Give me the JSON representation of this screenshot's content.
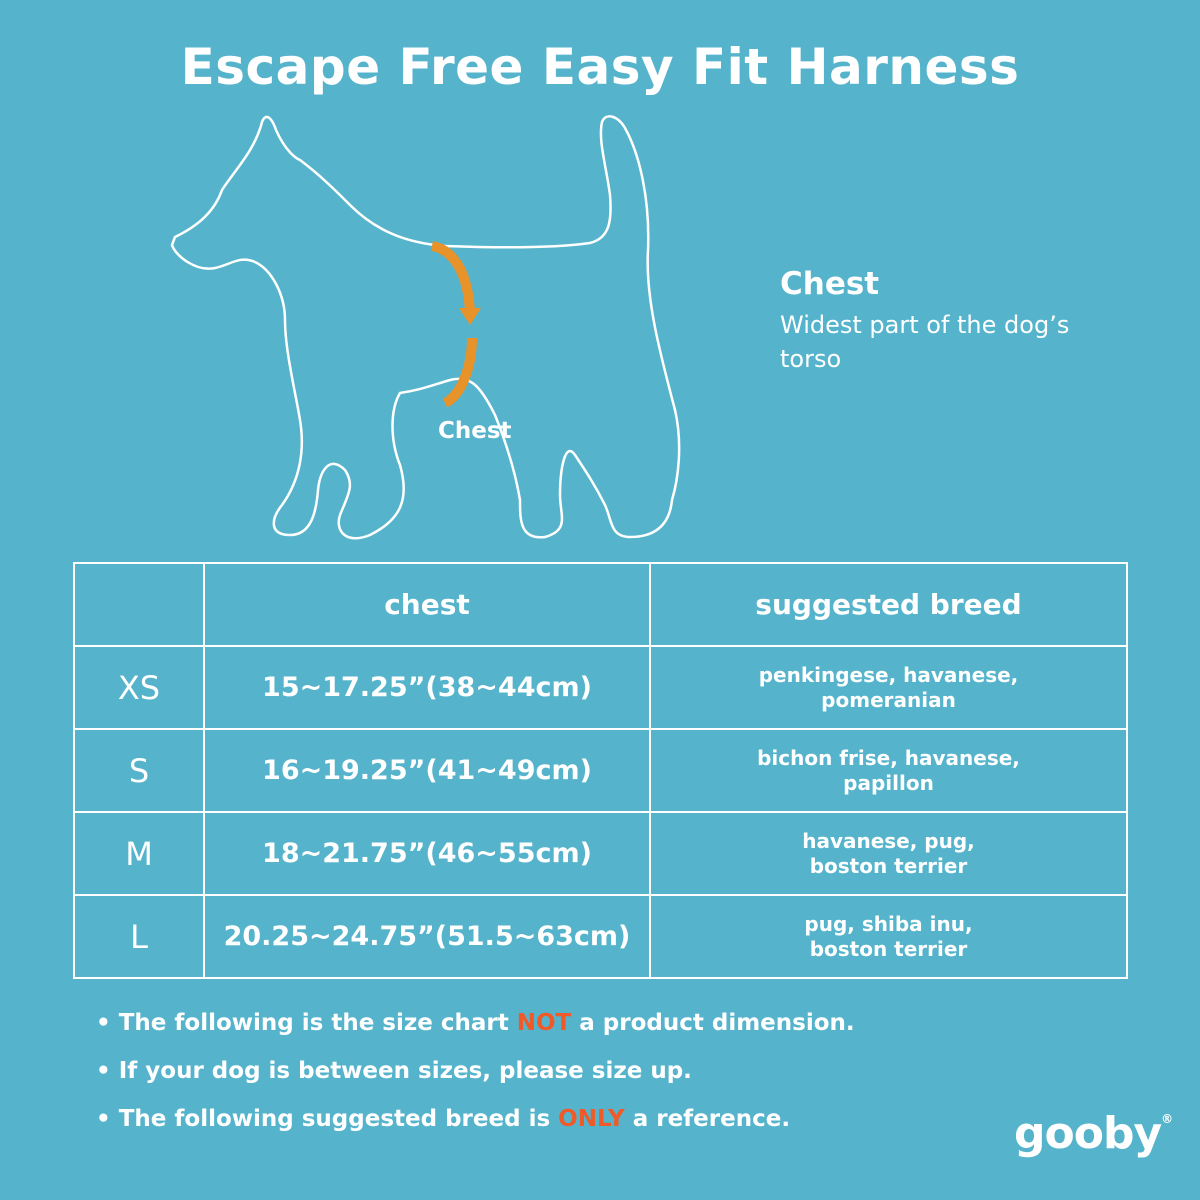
{
  "title": "Escape Free Easy Fit Harness",
  "diagram": {
    "chest_label": "Chest",
    "side_title": "Chest",
    "side_description": "Widest part of the dog’s torso",
    "outline_color": "#ffffff",
    "arrow_color": "#e8922a"
  },
  "table": {
    "headers": [
      "",
      "chest",
      "suggested breed"
    ],
    "rows": [
      {
        "size": "XS",
        "chest": "15~17.25”(38~44cm)",
        "breed_line1": "penkingese, havanese,",
        "breed_line2": "pomeranian"
      },
      {
        "size": "S",
        "chest": "16~19.25”(41~49cm)",
        "breed_line1": "bichon frise, havanese,",
        "breed_line2": "papillon"
      },
      {
        "size": "M",
        "chest": "18~21.75”(46~55cm)",
        "breed_line1": "havanese, pug,",
        "breed_line2": "boston terrier"
      },
      {
        "size": "L",
        "chest": "20.25~24.75”(51.5~63cm)",
        "breed_line1": "pug, shiba inu,",
        "breed_line2": "boston terrier"
      }
    ]
  },
  "notes": [
    {
      "before": "The following is  the size chart ",
      "highlight": "NOT",
      "after": " a product dimension."
    },
    {
      "before": "If your dog is between sizes, please size up.",
      "highlight": "",
      "after": ""
    },
    {
      "before": "The following suggested breed is ",
      "highlight": "ONLY",
      "after": " a reference."
    }
  ],
  "brand": {
    "name": "gooby",
    "mark": "®"
  },
  "colors": {
    "background": "#55b4cb",
    "highlight": "#f05a28"
  }
}
